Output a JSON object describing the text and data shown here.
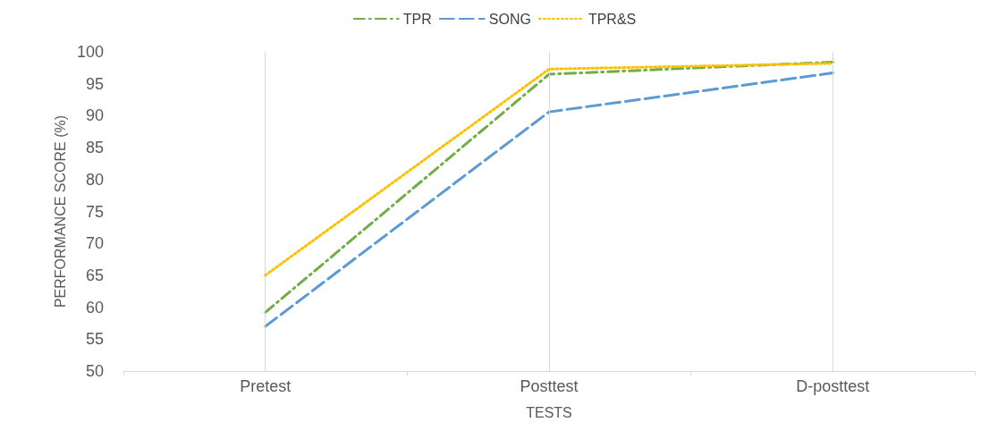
{
  "chart_data": {
    "type": "line",
    "xlabel": "TESTS",
    "ylabel": "PERFORMANCE SCORE (%)",
    "categories": [
      "Pretest",
      "Posttest",
      "D-posttest"
    ],
    "series": [
      {
        "name": "TPR",
        "color": "#70ad47",
        "line_style": "dashed",
        "values": [
          59.2,
          96.5,
          98.4
        ]
      },
      {
        "name": "SONG",
        "color": "#5b9bd5",
        "line_style": "dashed",
        "values": [
          57,
          90.6,
          96.7
        ]
      },
      {
        "name": "TPR&S",
        "color": "#ffc000",
        "line_style": "dotted",
        "values": [
          65,
          97.3,
          98.2
        ]
      }
    ],
    "ylim": [
      50,
      100
    ],
    "yticks": [
      50,
      55,
      60,
      65,
      70,
      75,
      80,
      85,
      90,
      95,
      100
    ],
    "grid": "x",
    "legend": "top",
    "marker": "none"
  }
}
